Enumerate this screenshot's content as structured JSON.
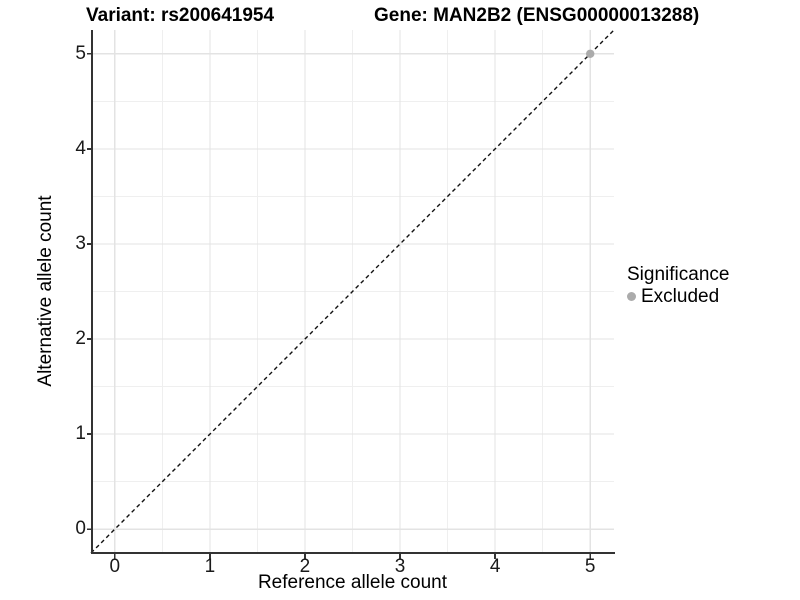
{
  "header": {
    "variant_title": "Variant: rs200641954",
    "gene_title": "Gene: MAN2B2 (ENSG00000013288)"
  },
  "chart_data": {
    "type": "scatter",
    "xlabel": "Reference allele count",
    "ylabel": "Alternative allele count",
    "xlim": [
      -0.25,
      5.25
    ],
    "ylim": [
      -0.25,
      5.25
    ],
    "x_ticks": [
      0,
      1,
      2,
      3,
      4,
      5
    ],
    "y_ticks": [
      0,
      1,
      2,
      3,
      4,
      5
    ],
    "x_minor_ticks": [
      0.5,
      1.5,
      2.5,
      3.5,
      4.5
    ],
    "y_minor_ticks": [
      0.5,
      1.5,
      2.5,
      3.5,
      4.5
    ],
    "grid": "on",
    "series": [
      {
        "name": "Excluded",
        "marker": "circle",
        "color": "#ababab",
        "points": [
          [
            5,
            5
          ]
        ]
      }
    ],
    "identity_line": {
      "slope": 1,
      "intercept": 0,
      "style": "dashed",
      "color": "#111111"
    },
    "legend": {
      "title": "Significance",
      "position": "right",
      "items": [
        {
          "label": "Excluded",
          "color": "#ababab",
          "marker": "circle"
        }
      ]
    },
    "style": {
      "background": "#ffffff",
      "grid_major_color": "#e3e3e3",
      "grid_minor_color": "#efefef",
      "axis_line_color": "#333333",
      "tick_mark_color": "#333333",
      "tick_label_color": "#1a1a1a",
      "point_color": "#ababab"
    }
  }
}
